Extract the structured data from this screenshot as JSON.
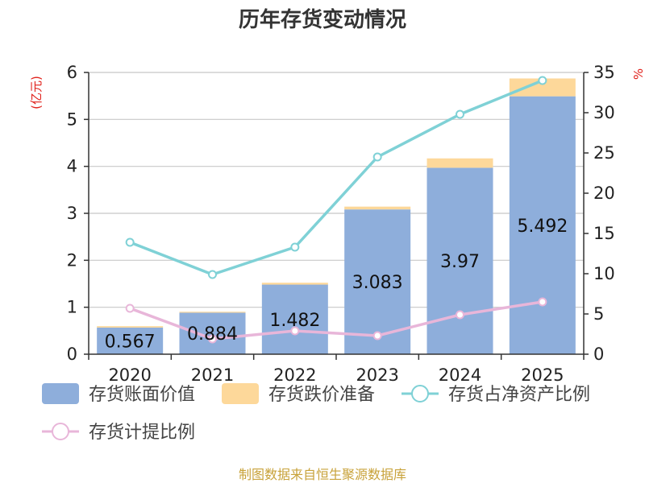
{
  "title": "历年存货变动情况",
  "source": "制图数据来自恒生聚源数据库",
  "left_unit": "(亿元)",
  "right_unit": "%",
  "colors": {
    "book_value": "#8eaedb",
    "impairment": "#fdd89a",
    "net_asset_ratio": "#7fd1d6",
    "provision_ratio": "#e8b6d9",
    "grid": "#c8c8c8",
    "axis": "#333333"
  },
  "chart_data": {
    "type": "bar",
    "title": "历年存货变动情况",
    "categories": [
      "2020",
      "2021",
      "2022",
      "2023",
      "2024",
      "2025"
    ],
    "series": [
      {
        "name": "存货账面价值",
        "kind": "stacked-bar",
        "axis": "left",
        "values": [
          0.567,
          0.884,
          1.482,
          3.083,
          3.97,
          5.492
        ]
      },
      {
        "name": "存货跌价准备",
        "kind": "stacked-bar",
        "axis": "left",
        "values": [
          0.03,
          0.02,
          0.04,
          0.06,
          0.2,
          0.38
        ]
      },
      {
        "name": "存货占净资产比例",
        "kind": "line",
        "axis": "right",
        "values": [
          13.9,
          9.9,
          13.3,
          24.5,
          29.8,
          34
        ]
      },
      {
        "name": "存货计提比例",
        "kind": "line",
        "axis": "right",
        "values": [
          5.7,
          1.9,
          2.9,
          2.3,
          4.9,
          6.5
        ]
      }
    ],
    "data_labels": [
      "0.567",
      "0.884",
      "1.482",
      "3.083",
      "3.97",
      "5.492"
    ],
    "y_left": {
      "ylim": [
        0,
        6
      ],
      "ticks": [
        "0",
        "1",
        "2",
        "3",
        "4",
        "5",
        "6"
      ]
    },
    "y_right": {
      "ylim": [
        0,
        35
      ],
      "ticks": [
        "0",
        "5",
        "10",
        "15",
        "20",
        "25",
        "30",
        "35"
      ]
    },
    "grid": true,
    "legend_position": "bottom"
  }
}
